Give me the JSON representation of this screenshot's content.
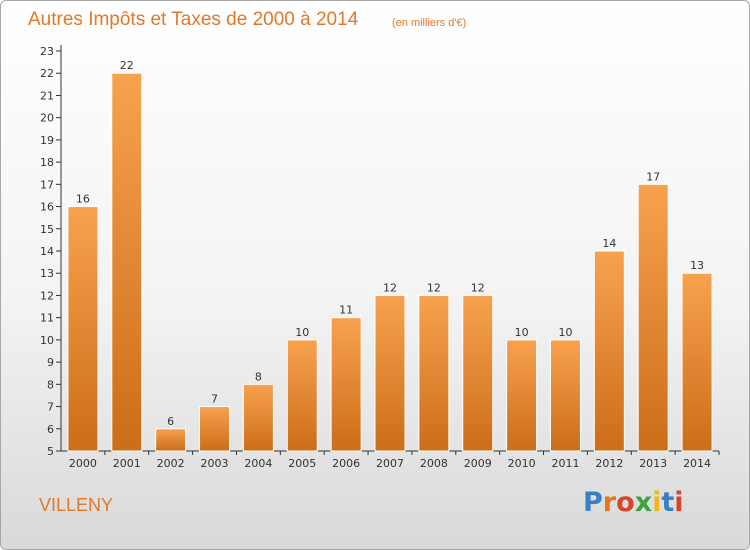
{
  "header": {
    "title": "Autres Impôts et Taxes de 2000 à 2014",
    "subtitle": "(en milliers d'€)"
  },
  "footer": {
    "commune": "VILLENY",
    "logo_text": "Proxiti",
    "logo_colors": [
      "#3a7fc4",
      "#e8741e",
      "#d6442a",
      "#3ea23c",
      "#f0b81c",
      "#3a7fc4",
      "#d6442a"
    ]
  },
  "colors": {
    "bar_light": "#f7a24f",
    "bar_dark": "#cc6d18",
    "title": "#e2782a"
  },
  "chart_data": {
    "type": "bar",
    "categories": [
      "2000",
      "2001",
      "2002",
      "2003",
      "2004",
      "2005",
      "2006",
      "2007",
      "2008",
      "2009",
      "2010",
      "2011",
      "2012",
      "2013",
      "2014"
    ],
    "values": [
      16,
      22,
      6,
      7,
      8,
      10,
      11,
      12,
      12,
      12,
      10,
      10,
      14,
      17,
      13
    ],
    "data_labels": [
      "16",
      "22",
      "6",
      "7",
      "8",
      "10",
      "11",
      "12",
      "12",
      "12",
      "10",
      "10",
      "14",
      "17",
      "13"
    ],
    "yticks": [
      "5",
      "6",
      "7",
      "8",
      "9",
      "10",
      "11",
      "12",
      "13",
      "14",
      "15",
      "16",
      "17",
      "18",
      "19",
      "20",
      "21",
      "22",
      "23"
    ],
    "ylim": [
      5,
      23
    ],
    "title": "Autres Impôts et Taxes de 2000 à 2014",
    "subtitle": "(en milliers d'€)",
    "xlabel": "",
    "ylabel": "",
    "grid": false,
    "legend": "none"
  }
}
